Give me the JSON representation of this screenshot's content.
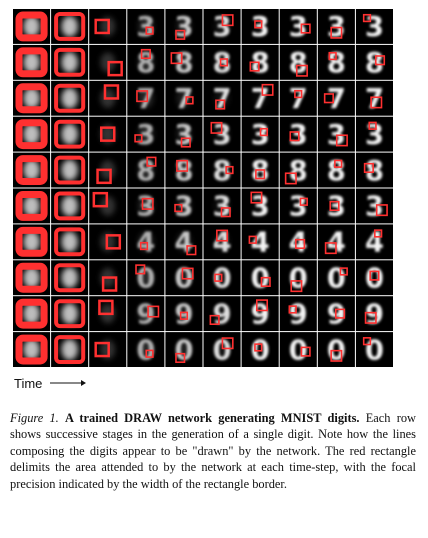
{
  "figure": {
    "rows": 10,
    "cols": 10,
    "frame_color": "#ff3030",
    "digit_glyphs": [
      "3",
      "8",
      "7",
      "3",
      "8",
      "3",
      "4",
      "0",
      "9",
      "0"
    ]
  },
  "time_axis": {
    "label": "Time",
    "arrow": "right-arrow-icon"
  },
  "caption": {
    "fig_label": "Figure 1.",
    "title_bold": "A trained DRAW network generating MNIST digits.",
    "body": "Each row shows successive stages in the generation of a single digit. Note how the lines composing the digits appear to be \"drawn\" by the network. The red rectangle delimits the area attended to by the network at each time-step, with the focal precision indicated by the width of the rectangle border."
  }
}
